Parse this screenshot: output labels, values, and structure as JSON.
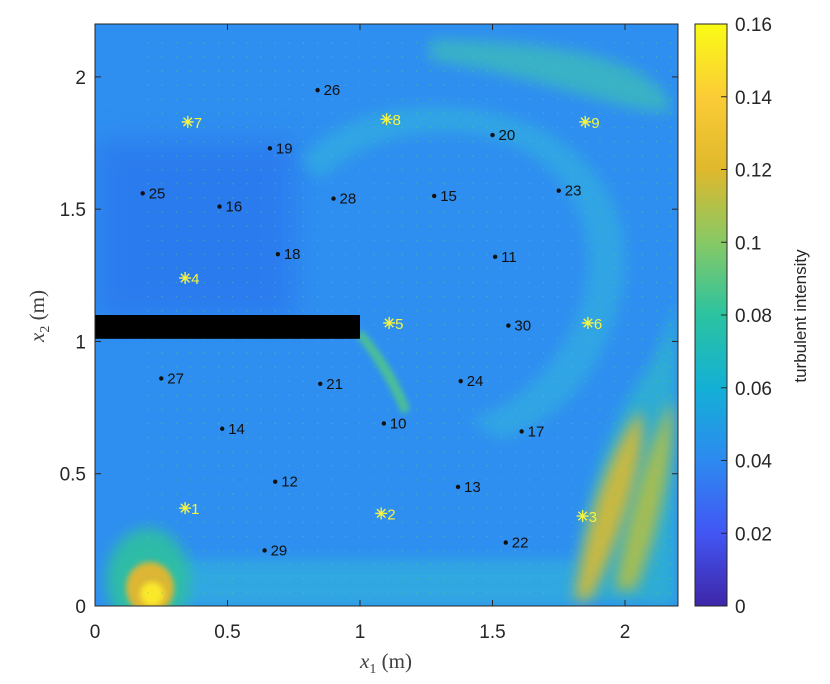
{
  "chart_data": {
    "type": "heatmap",
    "title": "",
    "xlabel": "x1 (m)",
    "ylabel": "x2 (m)",
    "xlim": [
      0,
      2.2
    ],
    "ylim": [
      0,
      2.2
    ],
    "xticks": [
      "0",
      "0.5",
      "1",
      "1.5",
      "2"
    ],
    "yticks": [
      "0",
      "0.5",
      "1",
      "1.5",
      "2"
    ],
    "colorbar": {
      "label": "turbulent intensity",
      "range": [
        0,
        0.16
      ],
      "ticks": [
        "0",
        "0.02",
        "0.04",
        "0.06",
        "0.08",
        "0.1",
        "0.12",
        "0.14",
        "0.16"
      ],
      "colormap": [
        "#3e26a8",
        "#4256f4",
        "#2d8af0",
        "#13b0d5",
        "#2bc3a0",
        "#87c965",
        "#dfb82c",
        "#fbcc36",
        "#f9fb15"
      ]
    },
    "background_color": "#2f8ff0",
    "obstacle": {
      "x": [
        0,
        1
      ],
      "y": [
        1.01,
        1.1
      ],
      "color": "#000000"
    },
    "sensor_points": [
      {
        "label": "10",
        "x": 1.09,
        "y": 0.69
      },
      {
        "label": "11",
        "x": 1.51,
        "y": 1.32
      },
      {
        "label": "12",
        "x": 0.68,
        "y": 0.47
      },
      {
        "label": "13",
        "x": 1.37,
        "y": 0.45
      },
      {
        "label": "14",
        "x": 0.48,
        "y": 0.67
      },
      {
        "label": "15",
        "x": 1.28,
        "y": 1.55
      },
      {
        "label": "16",
        "x": 0.47,
        "y": 1.51
      },
      {
        "label": "17",
        "x": 1.61,
        "y": 0.66
      },
      {
        "label": "18",
        "x": 0.69,
        "y": 1.33
      },
      {
        "label": "19",
        "x": 0.66,
        "y": 1.73
      },
      {
        "label": "20",
        "x": 1.5,
        "y": 1.78
      },
      {
        "label": "21",
        "x": 0.85,
        "y": 0.84
      },
      {
        "label": "22",
        "x": 1.55,
        "y": 0.24
      },
      {
        "label": "23",
        "x": 1.75,
        "y": 1.57
      },
      {
        "label": "24",
        "x": 1.38,
        "y": 0.85
      },
      {
        "label": "25",
        "x": 0.18,
        "y": 1.56
      },
      {
        "label": "26",
        "x": 0.84,
        "y": 1.95
      },
      {
        "label": "27",
        "x": 0.25,
        "y": 0.86
      },
      {
        "label": "28",
        "x": 0.9,
        "y": 1.54
      },
      {
        "label": "29",
        "x": 0.64,
        "y": 0.21
      },
      {
        "label": "30",
        "x": 1.56,
        "y": 1.06
      }
    ],
    "markers": [
      {
        "label": "1",
        "x": 0.34,
        "y": 0.37
      },
      {
        "label": "2",
        "x": 1.08,
        "y": 0.35
      },
      {
        "label": "3",
        "x": 1.84,
        "y": 0.34
      },
      {
        "label": "4",
        "x": 0.34,
        "y": 1.24
      },
      {
        "label": "5",
        "x": 1.11,
        "y": 1.07
      },
      {
        "label": "6",
        "x": 1.86,
        "y": 1.07
      },
      {
        "label": "7",
        "x": 0.35,
        "y": 1.83
      },
      {
        "label": "8",
        "x": 1.1,
        "y": 1.84
      },
      {
        "label": "9",
        "x": 1.85,
        "y": 1.83
      }
    ]
  }
}
